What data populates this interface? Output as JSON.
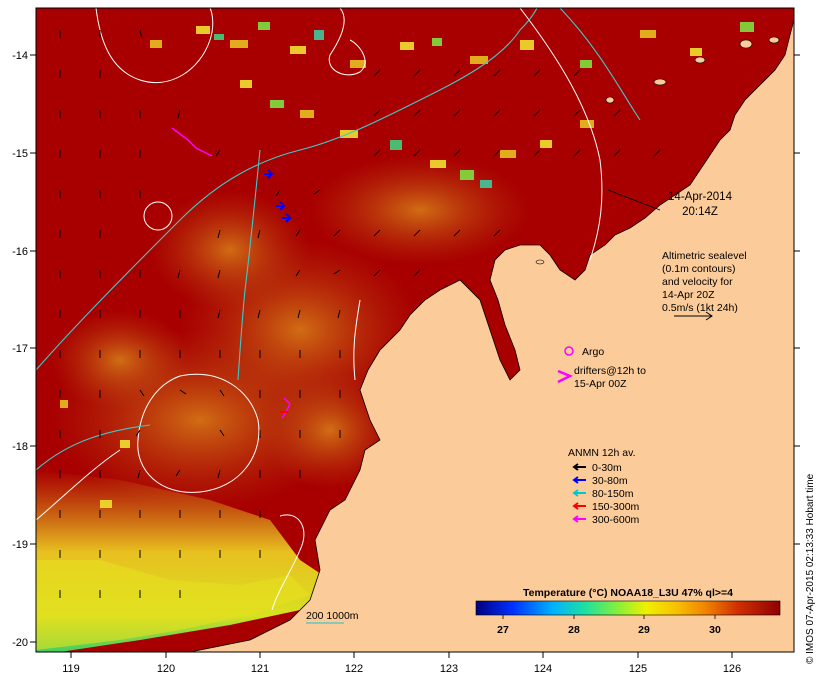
{
  "map": {
    "x_ticks": [
      "119",
      "120",
      "121",
      "122",
      "123",
      "124",
      "125",
      "126"
    ],
    "y_ticks": [
      "-14",
      "-15",
      "-16",
      "-17",
      "-18",
      "-19",
      "-20"
    ],
    "timestamp": {
      "line1": "14-Apr-2014",
      "line2": "20:14Z"
    },
    "altimetric": {
      "line1": "Altimetric sealevel",
      "line2": "(0.1m contours)",
      "line3": "and velocity for",
      "line4": "14-Apr 20Z",
      "line5": "0.5m/s (1kt 24h)"
    },
    "argo_label": "Argo",
    "drifters": {
      "line1": "drifters@12h to",
      "line2": "15-Apr 00Z"
    },
    "anmn": {
      "title": "ANMN 12h av.",
      "items": [
        {
          "label": "0-30m",
          "color": "#000000"
        },
        {
          "label": "30-80m",
          "color": "#0000ff"
        },
        {
          "label": "80-150m",
          "color": "#00c8d0"
        },
        {
          "label": "150-300m",
          "color": "#ff0000"
        },
        {
          "label": "300-600m",
          "color": "#ff00ff"
        }
      ]
    },
    "isobath_label": "200  1000m",
    "colorbar": {
      "title": "Temperature (°C) NOAA18_L3U 47% ql>=4",
      "ticks": [
        "27",
        "28",
        "29",
        "30"
      ]
    },
    "credit": "© IMOS 07-Apr-2015 02:13:33 Hobart time",
    "colors": {
      "land": "#fccb9a",
      "warm_sea": "#a80000",
      "isobath": "#40c8c8"
    }
  }
}
